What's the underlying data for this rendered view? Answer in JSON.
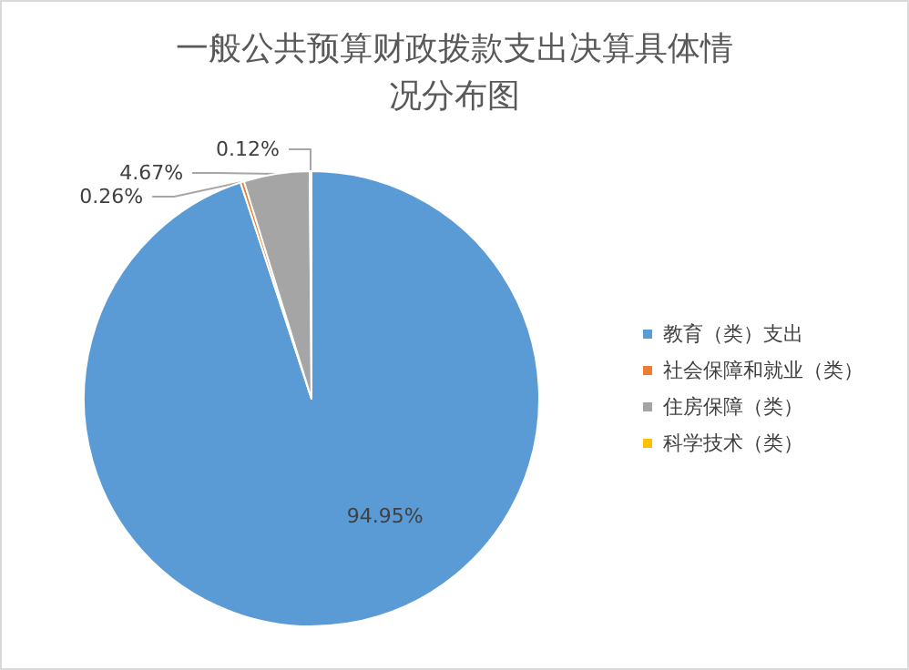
{
  "chart_data": {
    "type": "pie",
    "title": "一般公共预算财政拨款支出决算具体情况分布图",
    "categories": [
      "教育（类）支出",
      "社会保障和就业（类）",
      "住房保障（类）",
      "科学技术（类）"
    ],
    "values": [
      94.95,
      0.26,
      4.67,
      0.12
    ],
    "colors": [
      "#5b9bd5",
      "#ed7d31",
      "#a5a5a5",
      "#ffc000"
    ],
    "value_labels": [
      "94.95%",
      "0.26%",
      "4.67%",
      "0.12%"
    ],
    "legend": "right"
  }
}
